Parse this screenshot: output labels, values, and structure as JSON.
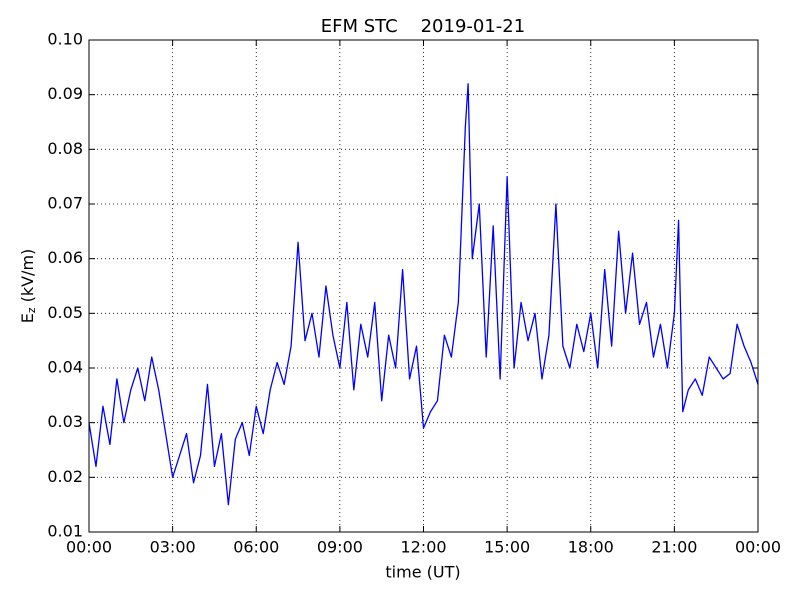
{
  "chart_data": {
    "type": "line",
    "title": "EFM STC    2019-01-21",
    "x_label": "time (UT)",
    "y_label": {
      "main": "E",
      "subscript": "z",
      "rest": "(kV/m)"
    },
    "grid": true,
    "xlim": [
      0,
      24
    ],
    "xticks": [
      {
        "value": 0,
        "label": "00:00"
      },
      {
        "value": 3,
        "label": "03:00"
      },
      {
        "value": 6,
        "label": "06:00"
      },
      {
        "value": 9,
        "label": "09:00"
      },
      {
        "value": 12,
        "label": "12:00"
      },
      {
        "value": 15,
        "label": "15:00"
      },
      {
        "value": 18,
        "label": "18:00"
      },
      {
        "value": 21,
        "label": "21:00"
      },
      {
        "value": 24,
        "label": "00:00"
      }
    ],
    "ylim": [
      0.01,
      0.1
    ],
    "yticks": [
      0.01,
      0.02,
      0.03,
      0.04,
      0.05,
      0.06,
      0.07,
      0.08,
      0.09,
      {
        "value": 0.1,
        "label": "0.10"
      }
    ],
    "x": [
      0,
      0.25,
      0.5,
      0.75,
      1,
      1.25,
      1.5,
      1.75,
      2,
      2.25,
      2.5,
      2.75,
      3,
      3.25,
      3.5,
      3.75,
      4,
      4.25,
      4.5,
      4.75,
      5,
      5.25,
      5.5,
      5.75,
      6,
      6.25,
      6.5,
      6.75,
      7,
      7.25,
      7.5,
      7.75,
      8,
      8.25,
      8.5,
      8.75,
      9,
      9.25,
      9.5,
      9.75,
      10,
      10.25,
      10.5,
      10.75,
      11,
      11.25,
      11.5,
      11.75,
      12,
      12.25,
      12.5,
      12.75,
      13,
      13.25,
      13.5,
      13.6,
      13.75,
      14,
      14.25,
      14.5,
      14.75,
      15,
      15.25,
      15.5,
      15.75,
      16,
      16.25,
      16.5,
      16.75,
      17,
      17.25,
      17.5,
      17.75,
      18,
      18.25,
      18.5,
      18.75,
      19,
      19.25,
      19.5,
      19.75,
      20,
      20.25,
      20.5,
      20.75,
      21,
      21.15,
      21.3,
      21.5,
      21.75,
      22,
      22.25,
      22.5,
      22.75,
      23,
      23.25,
      23.5,
      23.75,
      24
    ],
    "series": [
      {
        "name": "Ez",
        "color": "#0000ff",
        "values": [
          0.03,
          0.022,
          0.033,
          0.026,
          0.038,
          0.03,
          0.036,
          0.04,
          0.034,
          0.042,
          0.036,
          0.028,
          0.02,
          0.024,
          0.028,
          0.019,
          0.024,
          0.037,
          0.022,
          0.028,
          0.015,
          0.027,
          0.03,
          0.024,
          0.033,
          0.028,
          0.036,
          0.041,
          0.037,
          0.044,
          0.063,
          0.045,
          0.05,
          0.042,
          0.055,
          0.046,
          0.04,
          0.052,
          0.036,
          0.048,
          0.042,
          0.052,
          0.034,
          0.046,
          0.04,
          0.058,
          0.038,
          0.044,
          0.029,
          0.032,
          0.034,
          0.046,
          0.042,
          0.052,
          0.084,
          0.092,
          0.06,
          0.07,
          0.042,
          0.066,
          0.038,
          0.075,
          0.04,
          0.052,
          0.045,
          0.05,
          0.038,
          0.046,
          0.07,
          0.044,
          0.04,
          0.048,
          0.043,
          0.05,
          0.04,
          0.058,
          0.044,
          0.065,
          0.05,
          0.061,
          0.048,
          0.052,
          0.042,
          0.048,
          0.04,
          0.05,
          0.067,
          0.032,
          0.036,
          0.038,
          0.035,
          0.042,
          0.04,
          0.038,
          0.039,
          0.048,
          0.044,
          0.041,
          0.037
        ]
      }
    ]
  }
}
